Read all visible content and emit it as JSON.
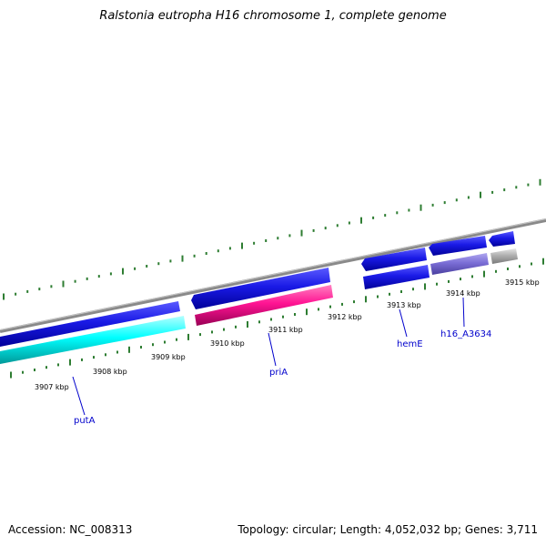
{
  "title": "Ralstonia eutropha H16 chromosome 1, complete genome",
  "footer": {
    "accession": "Accession: NC_008313",
    "topology": "Topology: circular; Length: 4,052,032 bp; Genes: 3,711"
  },
  "ruler_labels": [
    "3907 kbp",
    "3908 kbp",
    "3909 kbp",
    "3910 kbp",
    "3911 kbp",
    "3912 kbp",
    "3913 kbp",
    "3914 kbp",
    "3915 kbp"
  ],
  "gene_labels": [
    "putA",
    "priA",
    "hemE",
    "h16_A3634"
  ],
  "colors": {
    "backbone": "#808080",
    "cds_blue": "#1a1ae6",
    "cds_cyan": "#00ffff",
    "cds_magenta": "#ff1493",
    "cds_purple": "#7b6ed6",
    "cds_gray": "#b0b0b0",
    "tick": "#2e7d32",
    "gene_label": "#0000cc"
  }
}
